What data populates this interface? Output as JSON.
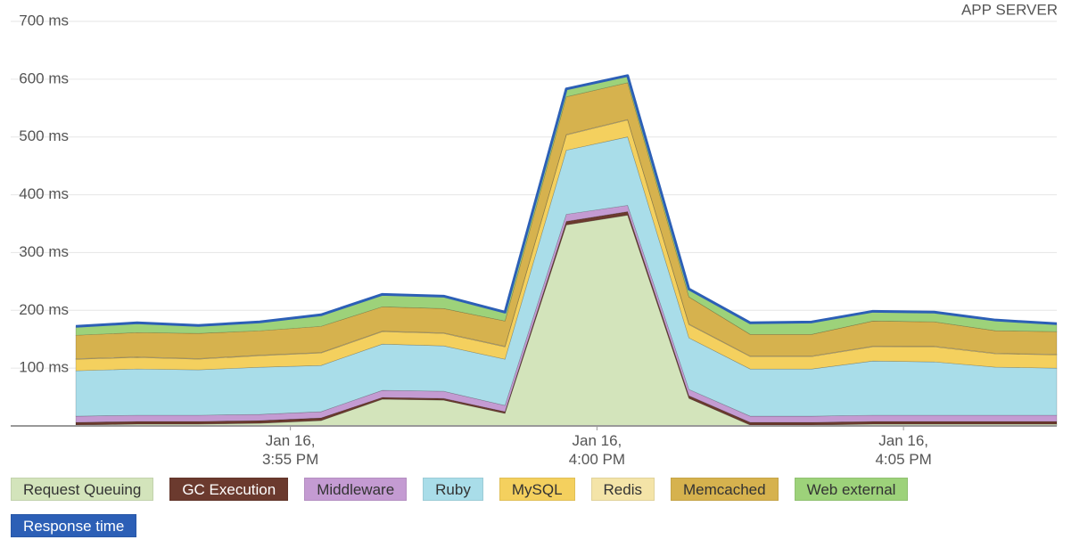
{
  "chart_data": {
    "type": "area",
    "stacked": true,
    "title": "APP SERVER",
    "x": [
      951.5,
      952.5,
      953.5,
      954.5,
      955.5,
      956.5,
      957.5,
      958.5,
      959.5,
      960.5,
      961.5,
      962.5,
      963.5,
      964.5,
      965.5,
      966.5,
      967.5
    ],
    "xlim": [
      951.5,
      967.5
    ],
    "xticks": [
      {
        "value": 955,
        "label": "Jan 16,\n3:55 PM"
      },
      {
        "value": 960,
        "label": "Jan 16,\n4:00 PM"
      },
      {
        "value": 965,
        "label": "Jan 16,\n4:05 PM"
      }
    ],
    "ylim": [
      0,
      700
    ],
    "yticks": [
      {
        "value": 100,
        "label": "100 ms"
      },
      {
        "value": 200,
        "label": "200 ms"
      },
      {
        "value": 300,
        "label": "300 ms"
      },
      {
        "value": 400,
        "label": "400 ms"
      },
      {
        "value": 500,
        "label": "500 ms"
      },
      {
        "value": 600,
        "label": "600 ms"
      },
      {
        "value": 700,
        "label": "700 ms"
      }
    ],
    "grid": true,
    "series": [
      {
        "name": "Request Queuing",
        "color": "#d3e4bb",
        "values": [
          1.5,
          3.1,
          3.1,
          4.6,
          9.2,
          46.2,
          44.6,
          21.5,
          347.7,
          364.6,
          47.7,
          1.5,
          1.5,
          3.1,
          3.1,
          3.1,
          3.1
        ]
      },
      {
        "name": "GC Execution",
        "color": "#6b3a2e",
        "values": [
          4.6,
          4.6,
          4.6,
          4.6,
          4.6,
          3.1,
          3.1,
          3.1,
          6.2,
          6.2,
          4.6,
          4.6,
          4.6,
          4.6,
          4.6,
          4.6,
          4.6
        ]
      },
      {
        "name": "Middleware",
        "color": "#c49bd2",
        "values": [
          10.8,
          10.8,
          10.8,
          10.8,
          10.8,
          12.3,
          12.3,
          10.8,
          12.3,
          10.8,
          10.8,
          10.8,
          10.8,
          10.8,
          10.8,
          10.8,
          10.8
        ]
      },
      {
        "name": "Ruby",
        "color": "#a9dde9",
        "values": [
          78.5,
          80,
          78.5,
          81.5,
          80,
          80,
          78.5,
          80,
          110.8,
          118.5,
          89.2,
          81.5,
          81.5,
          93.8,
          92.3,
          83.1,
          81.5
        ]
      },
      {
        "name": "MySQL",
        "color": "#f4d05e",
        "values": [
          20,
          20,
          18.5,
          20,
          21.5,
          21.5,
          21.5,
          21.5,
          26.2,
          29.2,
          23.1,
          21.5,
          21.5,
          24.6,
          26.2,
          23.1,
          23.1
        ]
      },
      {
        "name": "Redis",
        "color": "#f4e4a8",
        "values": [
          1,
          1,
          1,
          1,
          1,
          1,
          1,
          1,
          1,
          1,
          1,
          1,
          1,
          1,
          1,
          1,
          1
        ]
      },
      {
        "name": "Memcached",
        "color": "#d6b24e",
        "values": [
          40.5,
          42,
          43.6,
          42.1,
          45.2,
          42.1,
          42.1,
          43.6,
          65.2,
          63.6,
          46.7,
          37.5,
          37.5,
          43.6,
          42.1,
          39,
          39
        ]
      },
      {
        "name": "Web external",
        "color": "#9dd27a",
        "values": [
          15.4,
          16.9,
          13.8,
          15.4,
          20,
          21.5,
          21.5,
          15.4,
          13.8,
          12.3,
          13.8,
          20,
          21.5,
          16.9,
          16.9,
          18.5,
          13.8
        ]
      },
      {
        "name": "Response time",
        "color": "#2c5fb6",
        "type": "line",
        "values": [
          172.3,
          178.4,
          173.9,
          180,
          192.3,
          227.7,
          224.6,
          196.9,
          583.2,
          606.2,
          236.9,
          178.4,
          179.9,
          198.4,
          197,
          183.2,
          176.9
        ]
      }
    ]
  }
}
